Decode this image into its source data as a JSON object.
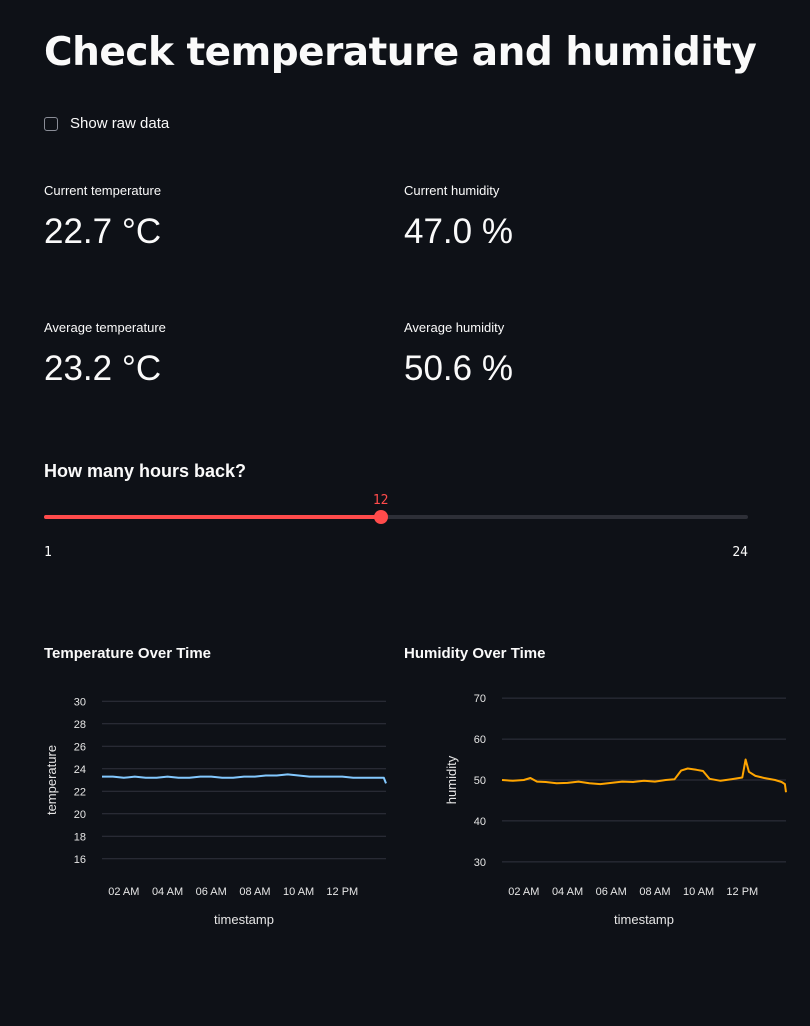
{
  "page": {
    "title": "Check temperature and humidity"
  },
  "raw_data_toggle": {
    "label": "Show raw data",
    "checked": false
  },
  "metrics": {
    "current_temperature": {
      "label": "Current temperature",
      "value": "22.7 °C"
    },
    "current_humidity": {
      "label": "Current humidity",
      "value": "47.0 %"
    },
    "average_temperature": {
      "label": "Average temperature",
      "value": "23.2 °C"
    },
    "average_humidity": {
      "label": "Average humidity",
      "value": "50.6 %"
    }
  },
  "slider": {
    "label": "How many hours back?",
    "min": 1,
    "max": 24,
    "value": 12,
    "min_label": "1",
    "max_label": "24",
    "value_label": "12"
  },
  "colors": {
    "accent": "#ff4b4b",
    "temperature_line": "#83c9ff",
    "humidity_line": "#ffa500",
    "background": "#0e1117",
    "grid": "#31333f"
  },
  "chart_data": [
    {
      "type": "line",
      "title": "Temperature Over Time",
      "xlabel": "timestamp",
      "ylabel": "temperature",
      "x_ticks": [
        "02 AM",
        "04 AM",
        "06 AM",
        "08 AM",
        "10 AM",
        "12 PM"
      ],
      "x_tick_hours": [
        2,
        4,
        6,
        8,
        10,
        12
      ],
      "xlim": [
        1.0,
        14.0
      ],
      "ylim": [
        15,
        31
      ],
      "y_ticks": [
        16,
        18,
        20,
        22,
        24,
        26,
        28,
        30
      ],
      "grid": true,
      "series": [
        {
          "color": "#83c9ff",
          "x": [
            1.0,
            1.5,
            2.0,
            2.5,
            3.0,
            3.5,
            4.0,
            4.5,
            5.0,
            5.5,
            6.0,
            6.5,
            7.0,
            7.5,
            8.0,
            8.5,
            9.0,
            9.5,
            10.0,
            10.5,
            11.0,
            11.5,
            12.0,
            12.5,
            13.0,
            13.5,
            13.9,
            14.0
          ],
          "y": [
            23.3,
            23.3,
            23.2,
            23.3,
            23.2,
            23.2,
            23.3,
            23.2,
            23.2,
            23.3,
            23.3,
            23.2,
            23.2,
            23.3,
            23.3,
            23.4,
            23.4,
            23.5,
            23.4,
            23.3,
            23.3,
            23.3,
            23.3,
            23.2,
            23.2,
            23.2,
            23.2,
            22.7
          ]
        }
      ]
    },
    {
      "type": "line",
      "title": "Humidity Over Time",
      "xlabel": "timestamp",
      "ylabel": "humidity",
      "x_ticks": [
        "02 AM",
        "04 AM",
        "06 AM",
        "08 AM",
        "10 AM",
        "12 PM"
      ],
      "x_tick_hours": [
        2,
        4,
        6,
        8,
        10,
        12
      ],
      "xlim": [
        1.0,
        14.0
      ],
      "ylim": [
        28,
        72
      ],
      "y_ticks": [
        30,
        40,
        50,
        60,
        70
      ],
      "grid": true,
      "series": [
        {
          "color": "#ffa500",
          "x": [
            1.0,
            1.5,
            2.0,
            2.3,
            2.6,
            3.0,
            3.5,
            4.0,
            4.5,
            5.0,
            5.5,
            6.0,
            6.5,
            7.0,
            7.5,
            8.0,
            8.5,
            8.9,
            9.2,
            9.5,
            9.9,
            10.2,
            10.5,
            11.0,
            11.5,
            12.0,
            12.15,
            12.3,
            12.6,
            13.0,
            13.5,
            13.8,
            13.95,
            14.0
          ],
          "y": [
            50.0,
            49.8,
            50.0,
            50.5,
            49.6,
            49.5,
            49.2,
            49.3,
            49.6,
            49.2,
            49.0,
            49.3,
            49.6,
            49.5,
            49.8,
            49.6,
            50.0,
            50.2,
            52.3,
            52.8,
            52.5,
            52.2,
            50.3,
            49.8,
            50.2,
            50.6,
            55.0,
            52.0,
            51.0,
            50.5,
            50.0,
            49.5,
            49.0,
            47.0
          ]
        }
      ]
    }
  ]
}
